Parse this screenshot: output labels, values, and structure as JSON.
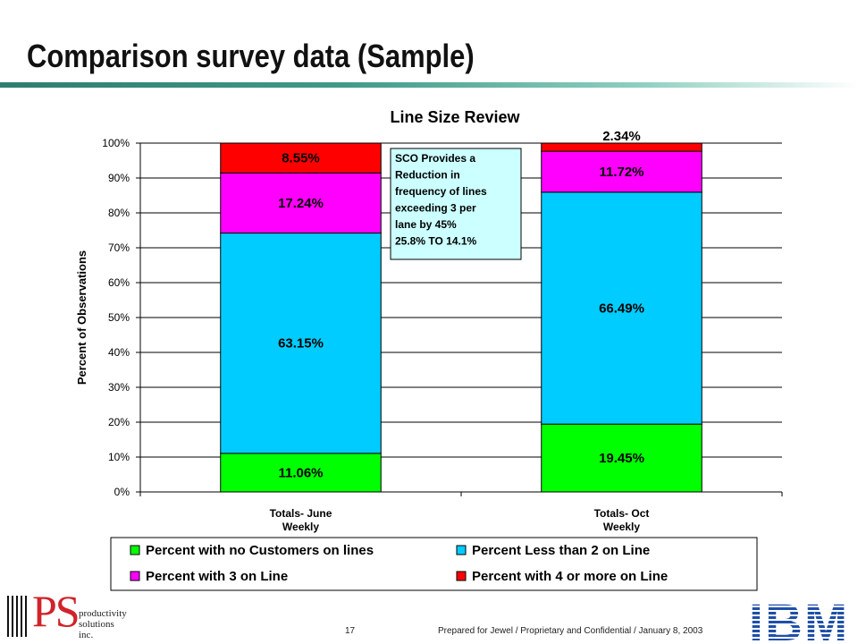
{
  "slide": {
    "title": "Comparison survey data (Sample)",
    "page_number": "17",
    "footer": "Prepared for Jewel / Proprietary and Confidential / January 8, 2003"
  },
  "logos": {
    "left": {
      "letters": "PS",
      "line1": "productivity",
      "line2": "solutions",
      "line3": "inc."
    },
    "right": {
      "text": "IBM",
      "color": "#1f4fa8"
    }
  },
  "chart_data": {
    "type": "bar",
    "stacked": true,
    "title": "Line Size Review",
    "xlabel": "",
    "ylabel": "Percent of Observations",
    "ylim": [
      0,
      100
    ],
    "y_ticks": [
      "0%",
      "10%",
      "20%",
      "30%",
      "40%",
      "50%",
      "60%",
      "70%",
      "80%",
      "90%",
      "100%"
    ],
    "grid": true,
    "legend_position": "bottom",
    "categories": [
      [
        "Totals- June",
        "Weekly"
      ],
      [
        "Totals- Oct",
        "Weekly"
      ]
    ],
    "series": [
      {
        "name": "Percent with no Customers on lines",
        "color": "#00ff00",
        "values": [
          11.06,
          19.45
        ],
        "labels": [
          "11.06%",
          "19.45%"
        ]
      },
      {
        "name": "Percent Less than 2 on Line",
        "color": "#00ccff",
        "values": [
          63.15,
          66.49
        ],
        "labels": [
          "63.15%",
          "66.49%"
        ]
      },
      {
        "name": "Percent with 3 on Line",
        "color": "#ff00ff",
        "values": [
          17.24,
          11.72
        ],
        "labels": [
          "17.24%",
          "11.72%"
        ]
      },
      {
        "name": "Percent with 4 or more on Line",
        "color": "#ff0000",
        "values": [
          8.55,
          2.34
        ],
        "labels": [
          "8.55%",
          "2.34%"
        ]
      }
    ],
    "annotation": {
      "lines": [
        "SCO Provides a",
        "Reduction in",
        "frequency of lines",
        "exceeding 3 per",
        "lane by 45%",
        "25.8% TO 14.1%"
      ],
      "background": "#ccffff"
    }
  }
}
